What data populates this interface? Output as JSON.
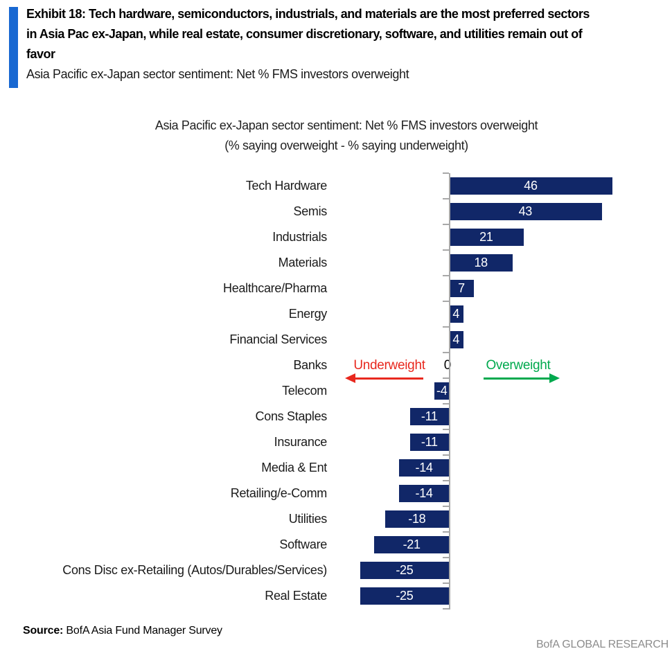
{
  "header": {
    "accent_color": "#1868d2",
    "exhibit_title_lines": [
      "Exhibit 18: Tech hardware, semiconductors, industrials, and materials are the most preferred sectors",
      "in Asia Pac ex-Japan, while real estate, consumer discretionary, software, and utilities remain out of",
      "favor"
    ],
    "subtitle": "Asia Pacific ex-Japan sector sentiment: Net % FMS investors overweight"
  },
  "chart_title_lines": [
    "Asia Pacific ex-Japan sector sentiment: Net % FMS investors overweight",
    "(% saying overweight - % saying underweight)"
  ],
  "chart_data": {
    "type": "bar",
    "orientation": "horizontal",
    "title": "Asia Pacific ex-Japan sector sentiment: Net % FMS investors overweight",
    "subtitle": "(% saying overweight - % saying underweight)",
    "categories": [
      "Tech Hardware",
      "Semis",
      "Industrials",
      "Materials",
      "Healthcare/Pharma",
      "Energy",
      "Financial Services",
      "Banks",
      "Telecom",
      "Cons Staples",
      "Insurance",
      "Media & Ent",
      "Retailing/e-Comm",
      "Utilities",
      "Software",
      "Cons Disc ex-Retailing (Autos/Durables/Services)",
      "Real Estate"
    ],
    "values": [
      46,
      43,
      21,
      18,
      7,
      4,
      4,
      0,
      -4,
      -11,
      -11,
      -14,
      -14,
      -18,
      -21,
      -25,
      -25
    ],
    "xlim": [
      -30,
      50
    ],
    "grid": false,
    "legend": false,
    "bar_color": "#112768",
    "value_label_color": "#ffffff",
    "axis_color": "#a8a8a8",
    "annotations": {
      "underweight_label": "Underweight",
      "underweight_color": "#e8281e",
      "overweight_label": "Overweight",
      "overweight_color": "#00a94e"
    }
  },
  "footer": {
    "source_label": "Source:",
    "source_text": " BofA Asia Fund Manager Survey",
    "brand": "BofA GLOBAL RESEARCH"
  }
}
